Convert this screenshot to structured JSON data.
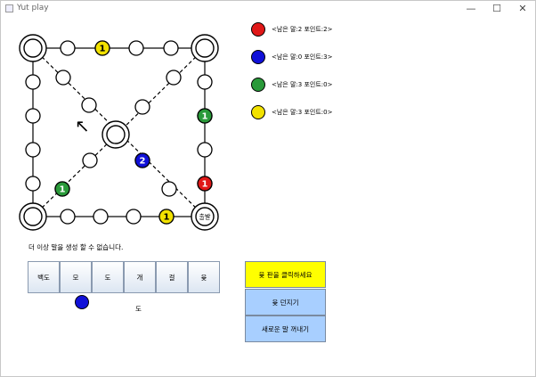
{
  "window": {
    "title": "Yut play",
    "minimize_glyph": "—",
    "maximize_glyph": "☐",
    "close_glyph": "✕"
  },
  "board": {
    "cursor_glyph": "↖",
    "goal_label": "출발",
    "pieces": [
      {
        "color": "#f2e200",
        "count": "1"
      },
      {
        "color": "#2a9a3a",
        "count": "1"
      },
      {
        "color": "#1010d8",
        "count": "2"
      },
      {
        "color": "#2a9a3a",
        "count": "1"
      },
      {
        "color": "#e01818",
        "count": "1"
      },
      {
        "color": "#f2e200",
        "count": "1"
      }
    ]
  },
  "players": [
    {
      "color": "#e01818",
      "text": "<남은 말:2 포인트:2>"
    },
    {
      "color": "#1010d8",
      "text": "<남은 말:0 포인트:3>"
    },
    {
      "color": "#2a9a3a",
      "text": "<남은 말:3 포인트:0>"
    },
    {
      "color": "#f2e200",
      "text": "<남은 말:3 포인트:0>"
    }
  ],
  "status_message": "더 이상 말을 생성 할 수 없습니다.",
  "yut_buttons": [
    "백도",
    "모",
    "도",
    "개",
    "걸",
    "윷"
  ],
  "current_player_color": "#1010d8",
  "throw_result": "도",
  "actions": {
    "prompt_label": "윷 판을 클릭하세요",
    "throw_label": "윷 던지기",
    "new_piece_label": "새로운 말 꺼내기",
    "prompt_color": "#ffff00",
    "button_color": "#a8cfff"
  }
}
